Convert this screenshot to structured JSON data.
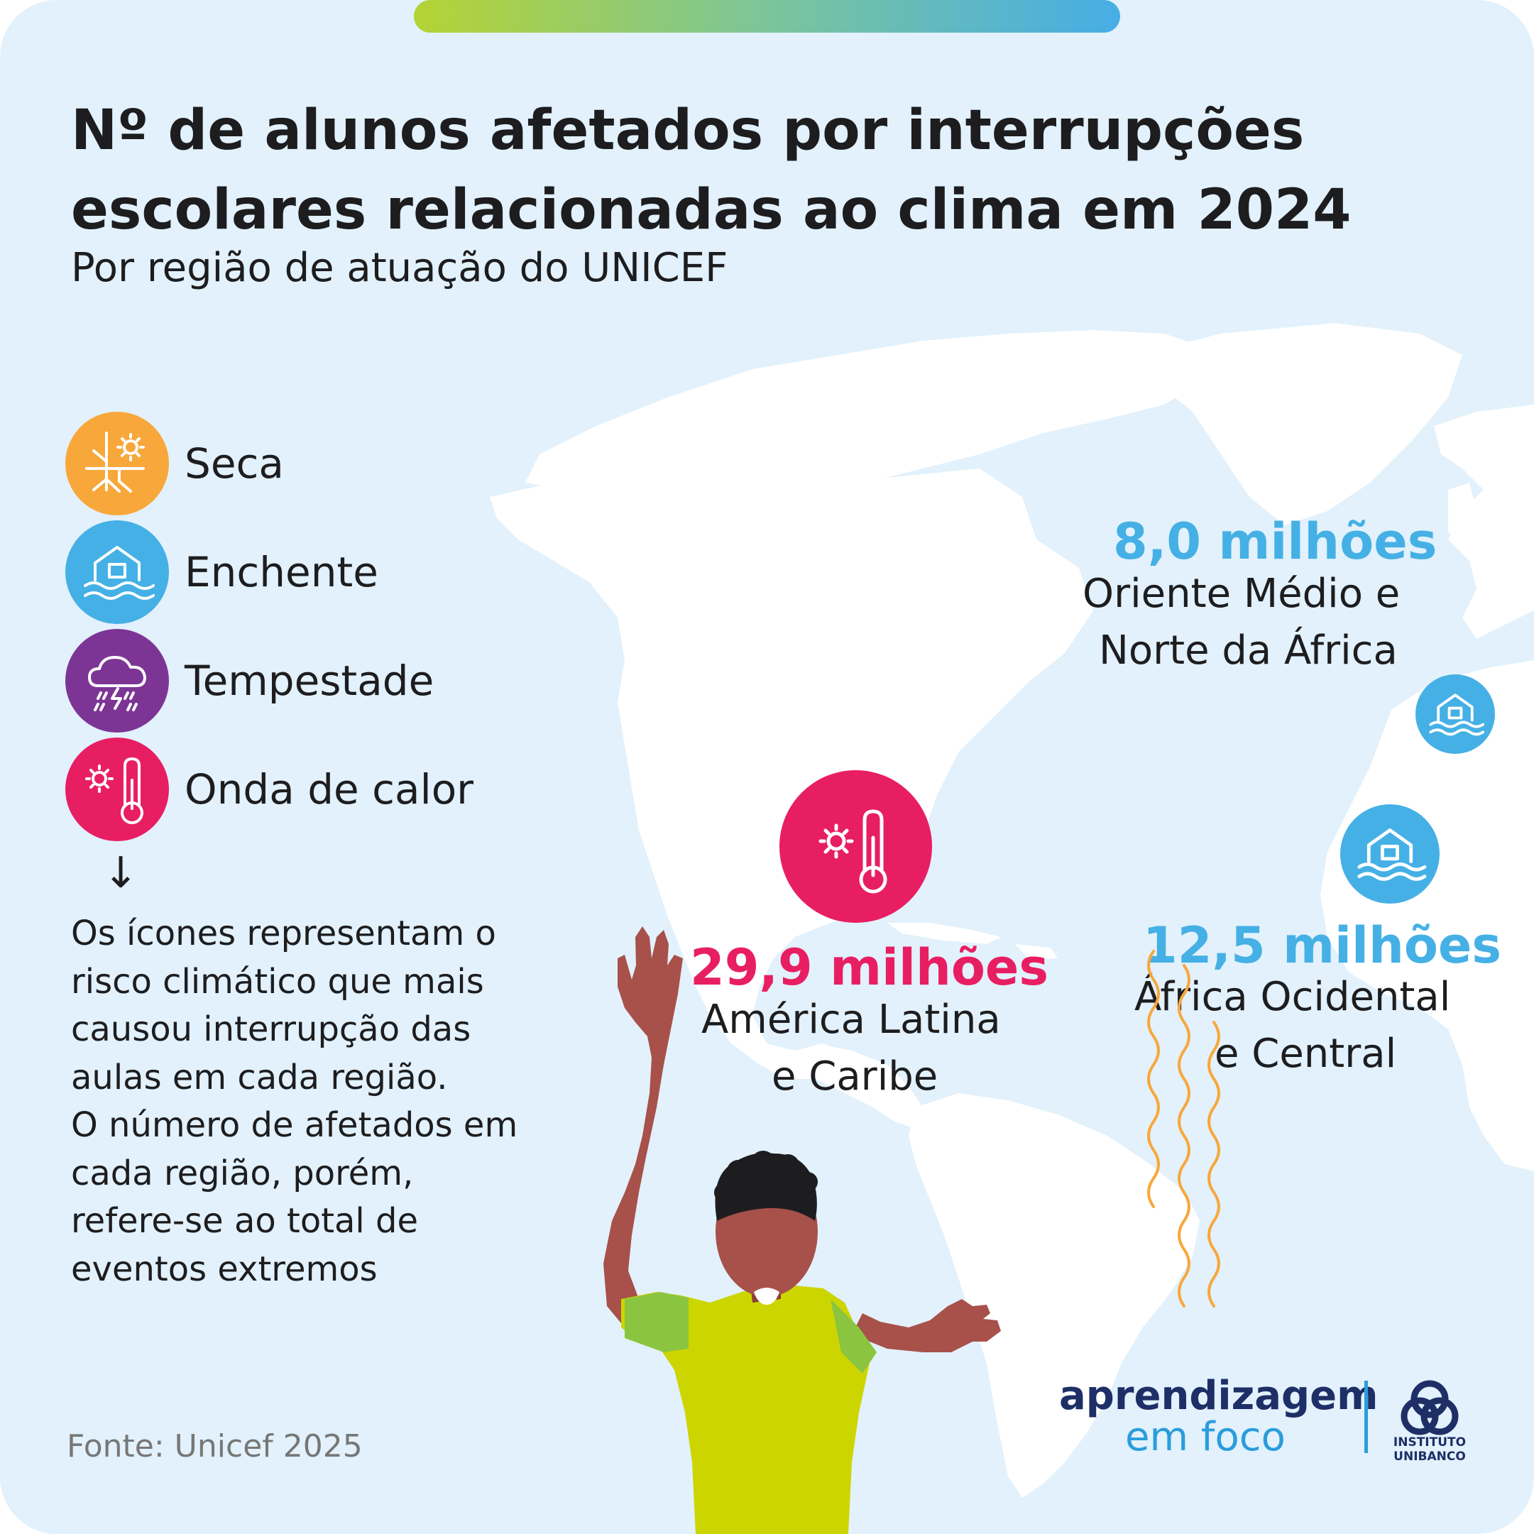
{
  "header": {
    "title_line1": "Nº de alunos afetados por interrupções",
    "title_line2": "escolares relacionadas ao clima em 2024",
    "subtitle": "Por região de atuação do UNICEF"
  },
  "legend": [
    {
      "label": "Seca",
      "icon": "drought-icon",
      "color": "#f8a73a"
    },
    {
      "label": "Enchente",
      "icon": "flood-icon",
      "color": "#45b0e5"
    },
    {
      "label": "Tempestade",
      "icon": "storm-icon",
      "color": "#7d3595"
    },
    {
      "label": "Onda de calor",
      "icon": "heatwave-icon",
      "color": "#e81e63"
    }
  ],
  "note": {
    "arrow": "↓",
    "lines": [
      "Os ícones representam o",
      "risco climático que mais",
      "causou interrupção das",
      "aulas em cada região.",
      "O número de afetados em",
      "cada região, porém,",
      "refere-se ao total de",
      "eventos extremos"
    ]
  },
  "regions": [
    {
      "value": "29,9 milhões",
      "name_line1": "América Latina",
      "name_line2": "e Caribe",
      "risk": "Onda de calor",
      "color": "#e81e63"
    },
    {
      "value": "8,0 milhões",
      "name_line1": "Oriente Médio e",
      "name_line2": "Norte da África",
      "risk": "Enchente",
      "color": "#45b0e5"
    },
    {
      "value": "12,5 milhões",
      "name_line1": "África Ocidental",
      "name_line2": "e Central",
      "risk": "Enchente",
      "color": "#45b0e5"
    }
  ],
  "source": "Fonte: Unicef 2025",
  "logo": {
    "line1": "aprendizagem",
    "line2": "em foco",
    "institute_line1": "INSTITUTO",
    "institute_line2": "UNIBANCO"
  },
  "colors": {
    "background": "#e2f1fb",
    "land": "#ffffff",
    "text": "#1d1d1f",
    "brand_navy": "#1e2e66",
    "brand_blue": "#2a9ddc"
  }
}
